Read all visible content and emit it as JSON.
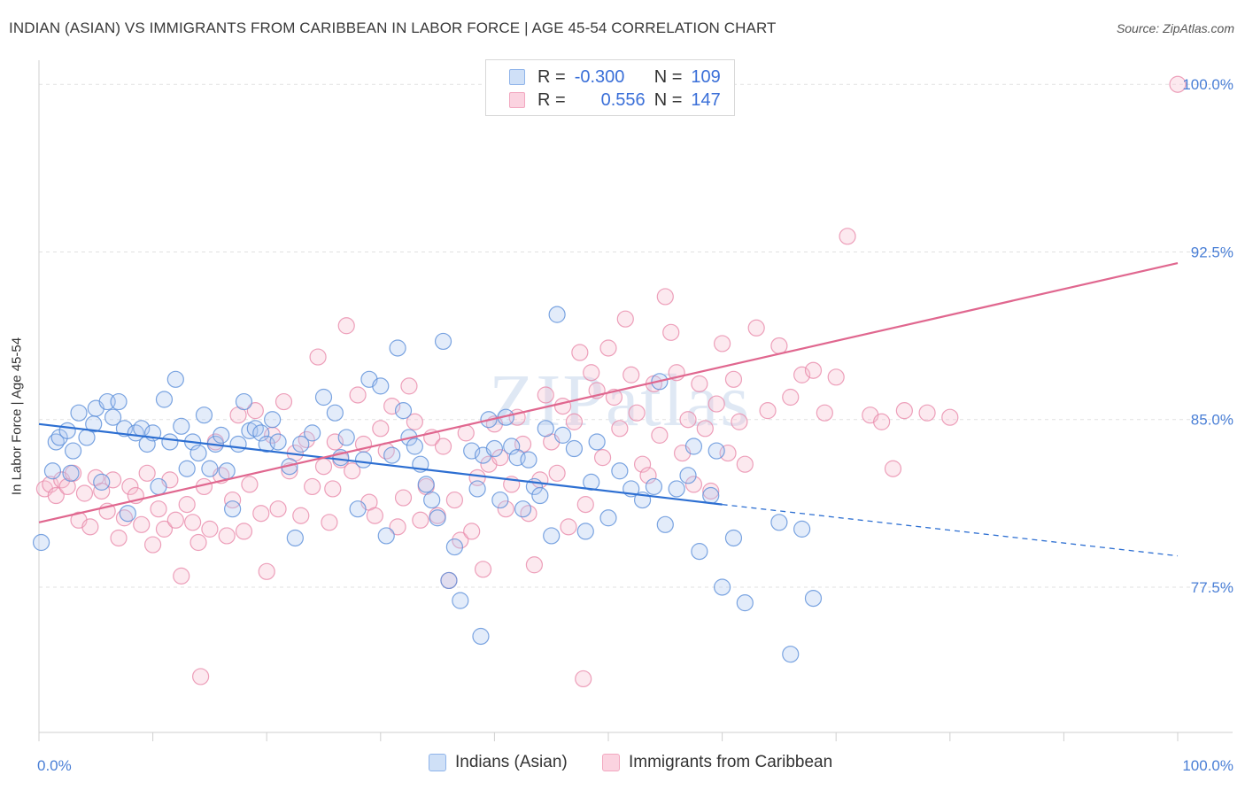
{
  "title": "INDIAN (ASIAN) VS IMMIGRANTS FROM CARIBBEAN IN LABOR FORCE | AGE 45-54 CORRELATION CHART",
  "source": "Source: ZipAtlas.com",
  "watermark": "ZIPatlas",
  "legend_top": {
    "rows": [
      {
        "r_label": "R =",
        "r_value": "-0.300",
        "n_label": "N =",
        "n_value": "109",
        "color": "#8fb4ea"
      },
      {
        "r_label": "R =",
        "r_value": "0.556",
        "n_label": "N =",
        "n_value": "147",
        "color": "#f2a8c0"
      }
    ]
  },
  "legend_bottom": [
    {
      "label": "Indians (Asian)",
      "color": "#aec8f0"
    },
    {
      "label": "Immigrants from Caribbean",
      "color": "#f6bfd0"
    }
  ],
  "colors": {
    "blue": "#4a86d8",
    "blue_line": "#2d6fd2",
    "pink": "#e87fa4",
    "pink_line": "#e0678f",
    "tick_text": "#4a7fd6"
  },
  "chart_data": {
    "type": "scatter",
    "title": "INDIAN (ASIAN) VS IMMIGRANTS FROM CARIBBEAN IN LABOR FORCE | AGE 45-54 CORRELATION CHART",
    "xlabel": "",
    "ylabel": "In Labor Force | Age 45-54",
    "xlim": [
      0,
      100
    ],
    "ylim": [
      71.0,
      101.0
    ],
    "x_tick_labels": [
      "0.0%",
      "100.0%"
    ],
    "y_ticks": [
      77.5,
      85.0,
      92.5,
      100.0
    ],
    "y_tick_labels": [
      "77.5%",
      "85.0%",
      "92.5%",
      "100.0%"
    ],
    "grid": true,
    "legend": "top-center",
    "series": [
      {
        "name": "Indians (Asian)",
        "trend": {
          "x0": 0,
          "y0": 84.8,
          "x1": 60,
          "y1": 81.2,
          "dash_to_x": 100,
          "dash_y": 78.9
        },
        "points": [
          [
            0.2,
            79.5
          ],
          [
            1.2,
            82.7
          ],
          [
            1.5,
            84.0
          ],
          [
            1.8,
            84.2
          ],
          [
            2.5,
            84.5
          ],
          [
            2.8,
            82.6
          ],
          [
            3.0,
            83.6
          ],
          [
            3.5,
            85.3
          ],
          [
            4.2,
            84.2
          ],
          [
            4.8,
            84.8
          ],
          [
            5.0,
            85.5
          ],
          [
            5.5,
            82.2
          ],
          [
            6.0,
            85.8
          ],
          [
            6.5,
            85.1
          ],
          [
            7.0,
            85.8
          ],
          [
            7.5,
            84.6
          ],
          [
            7.8,
            80.8
          ],
          [
            8.5,
            84.4
          ],
          [
            9.0,
            84.6
          ],
          [
            9.5,
            83.9
          ],
          [
            10.0,
            84.4
          ],
          [
            10.5,
            82.0
          ],
          [
            11.0,
            85.9
          ],
          [
            11.5,
            84.0
          ],
          [
            12.0,
            86.8
          ],
          [
            12.5,
            84.7
          ],
          [
            13.0,
            82.8
          ],
          [
            13.5,
            84.0
          ],
          [
            14.0,
            83.5
          ],
          [
            14.5,
            85.2
          ],
          [
            15.0,
            82.8
          ],
          [
            15.5,
            83.9
          ],
          [
            16.0,
            84.3
          ],
          [
            16.5,
            82.7
          ],
          [
            17.0,
            81.0
          ],
          [
            17.5,
            83.9
          ],
          [
            18.0,
            85.8
          ],
          [
            18.5,
            84.5
          ],
          [
            19.0,
            84.6
          ],
          [
            19.5,
            84.4
          ],
          [
            20.0,
            83.9
          ],
          [
            20.5,
            85.0
          ],
          [
            21.0,
            84.0
          ],
          [
            22.0,
            82.9
          ],
          [
            22.5,
            79.7
          ],
          [
            23.0,
            83.9
          ],
          [
            24.0,
            84.4
          ],
          [
            25.0,
            86.0
          ],
          [
            26.0,
            85.3
          ],
          [
            26.5,
            83.3
          ],
          [
            27.0,
            84.2
          ],
          [
            28.0,
            81.0
          ],
          [
            28.5,
            83.2
          ],
          [
            29.0,
            86.8
          ],
          [
            30.0,
            86.5
          ],
          [
            30.5,
            79.8
          ],
          [
            31.0,
            83.4
          ],
          [
            31.5,
            88.2
          ],
          [
            32.0,
            85.4
          ],
          [
            32.5,
            84.2
          ],
          [
            33.0,
            83.8
          ],
          [
            33.5,
            83.0
          ],
          [
            34.0,
            82.1
          ],
          [
            34.5,
            81.4
          ],
          [
            35.0,
            80.6
          ],
          [
            35.5,
            88.5
          ],
          [
            36.0,
            77.8
          ],
          [
            36.5,
            79.3
          ],
          [
            37.0,
            76.9
          ],
          [
            38.0,
            83.6
          ],
          [
            38.5,
            81.9
          ],
          [
            39.0,
            83.4
          ],
          [
            39.5,
            85.0
          ],
          [
            40.0,
            83.7
          ],
          [
            40.5,
            81.4
          ],
          [
            41.0,
            85.1
          ],
          [
            41.5,
            83.8
          ],
          [
            42.0,
            83.3
          ],
          [
            42.5,
            81.0
          ],
          [
            43.0,
            83.2
          ],
          [
            43.5,
            82.0
          ],
          [
            44.0,
            81.6
          ],
          [
            44.5,
            84.6
          ],
          [
            45.0,
            79.8
          ],
          [
            46.0,
            84.3
          ],
          [
            47.0,
            83.7
          ],
          [
            48.0,
            80.0
          ],
          [
            48.5,
            82.2
          ],
          [
            49.0,
            84.0
          ],
          [
            50.0,
            80.6
          ],
          [
            51.0,
            82.7
          ],
          [
            52.0,
            81.9
          ],
          [
            53.0,
            81.4
          ],
          [
            54.0,
            82.0
          ],
          [
            55.0,
            80.3
          ],
          [
            56.0,
            81.9
          ],
          [
            57.0,
            82.5
          ],
          [
            58.0,
            79.1
          ],
          [
            59.0,
            81.6
          ],
          [
            60.0,
            77.5
          ],
          [
            61.0,
            79.7
          ],
          [
            62.0,
            76.8
          ],
          [
            45.5,
            89.7
          ],
          [
            38.8,
            75.3
          ],
          [
            54.5,
            86.7
          ],
          [
            57.5,
            83.8
          ],
          [
            59.5,
            83.6
          ],
          [
            65.0,
            80.4
          ],
          [
            67.0,
            80.1
          ],
          [
            68.0,
            77.0
          ],
          [
            66.0,
            74.5
          ]
        ]
      },
      {
        "name": "Immigrants from Caribbean",
        "trend": {
          "x0": 0,
          "y0": 80.4,
          "x1": 100,
          "y1": 92.0
        },
        "points": [
          [
            0.5,
            81.9
          ],
          [
            1.0,
            82.1
          ],
          [
            1.5,
            81.6
          ],
          [
            2.0,
            82.3
          ],
          [
            2.5,
            82.0
          ],
          [
            3.0,
            82.6
          ],
          [
            3.5,
            80.5
          ],
          [
            4.0,
            81.7
          ],
          [
            4.5,
            80.2
          ],
          [
            5.0,
            82.4
          ],
          [
            5.5,
            81.8
          ],
          [
            6.0,
            80.9
          ],
          [
            6.5,
            82.3
          ],
          [
            7.0,
            79.7
          ],
          [
            7.5,
            80.6
          ],
          [
            8.0,
            82.0
          ],
          [
            8.5,
            81.6
          ],
          [
            9.0,
            80.3
          ],
          [
            9.5,
            82.6
          ],
          [
            10.0,
            79.4
          ],
          [
            10.5,
            81.0
          ],
          [
            11.0,
            80.1
          ],
          [
            11.5,
            82.3
          ],
          [
            12.0,
            80.5
          ],
          [
            12.5,
            78.0
          ],
          [
            13.0,
            81.2
          ],
          [
            13.5,
            80.4
          ],
          [
            14.0,
            79.5
          ],
          [
            14.5,
            82.0
          ],
          [
            15.0,
            80.1
          ],
          [
            15.5,
            84.0
          ],
          [
            16.0,
            82.5
          ],
          [
            16.5,
            79.8
          ],
          [
            17.0,
            81.4
          ],
          [
            17.5,
            85.2
          ],
          [
            18.0,
            80.0
          ],
          [
            18.5,
            82.1
          ],
          [
            19.0,
            85.4
          ],
          [
            19.5,
            80.8
          ],
          [
            20.0,
            78.2
          ],
          [
            20.5,
            84.3
          ],
          [
            21.0,
            81.0
          ],
          [
            21.5,
            85.8
          ],
          [
            22.0,
            82.7
          ],
          [
            22.5,
            83.5
          ],
          [
            23.0,
            80.7
          ],
          [
            23.5,
            84.1
          ],
          [
            24.0,
            82.0
          ],
          [
            24.5,
            87.8
          ],
          [
            25.0,
            82.9
          ],
          [
            25.5,
            80.4
          ],
          [
            26.0,
            84.0
          ],
          [
            26.5,
            83.2
          ],
          [
            27.0,
            89.2
          ],
          [
            27.5,
            82.7
          ],
          [
            28.0,
            86.1
          ],
          [
            28.5,
            83.9
          ],
          [
            29.0,
            81.3
          ],
          [
            29.5,
            80.7
          ],
          [
            30.0,
            84.6
          ],
          [
            30.5,
            83.6
          ],
          [
            31.0,
            85.6
          ],
          [
            31.5,
            80.2
          ],
          [
            32.0,
            81.5
          ],
          [
            32.5,
            86.5
          ],
          [
            33.0,
            84.9
          ],
          [
            33.5,
            80.5
          ],
          [
            34.0,
            82.0
          ],
          [
            34.5,
            84.2
          ],
          [
            35.0,
            80.7
          ],
          [
            35.5,
            83.8
          ],
          [
            36.0,
            77.8
          ],
          [
            36.5,
            81.4
          ],
          [
            37.0,
            79.6
          ],
          [
            37.5,
            84.4
          ],
          [
            38.0,
            80.0
          ],
          [
            38.5,
            82.4
          ],
          [
            39.0,
            78.3
          ],
          [
            39.5,
            83.0
          ],
          [
            40.0,
            84.8
          ],
          [
            40.5,
            83.3
          ],
          [
            41.0,
            81.0
          ],
          [
            41.5,
            82.1
          ],
          [
            42.0,
            85.1
          ],
          [
            42.5,
            83.9
          ],
          [
            43.0,
            80.8
          ],
          [
            43.5,
            78.5
          ],
          [
            44.0,
            82.3
          ],
          [
            44.5,
            86.1
          ],
          [
            45.0,
            84.0
          ],
          [
            45.5,
            82.6
          ],
          [
            46.0,
            85.6
          ],
          [
            46.5,
            80.2
          ],
          [
            47.0,
            84.9
          ],
          [
            47.5,
            88.0
          ],
          [
            48.0,
            81.2
          ],
          [
            48.5,
            87.1
          ],
          [
            49.0,
            86.3
          ],
          [
            49.5,
            83.3
          ],
          [
            50.0,
            88.2
          ],
          [
            50.5,
            86.0
          ],
          [
            51.0,
            84.6
          ],
          [
            51.5,
            89.5
          ],
          [
            52.0,
            87.0
          ],
          [
            52.5,
            85.3
          ],
          [
            53.0,
            83.0
          ],
          [
            53.5,
            82.5
          ],
          [
            54.0,
            86.6
          ],
          [
            54.5,
            84.3
          ],
          [
            55.0,
            90.5
          ],
          [
            55.5,
            88.9
          ],
          [
            56.0,
            87.1
          ],
          [
            56.5,
            83.5
          ],
          [
            57.0,
            85.0
          ],
          [
            57.5,
            82.1
          ],
          [
            58.0,
            86.6
          ],
          [
            58.5,
            84.6
          ],
          [
            59.0,
            81.8
          ],
          [
            59.5,
            85.7
          ],
          [
            60.0,
            88.4
          ],
          [
            60.5,
            83.5
          ],
          [
            61.0,
            86.8
          ],
          [
            61.5,
            84.9
          ],
          [
            62.0,
            83.0
          ],
          [
            63.0,
            89.1
          ],
          [
            64.0,
            85.4
          ],
          [
            65.0,
            88.3
          ],
          [
            66.0,
            86.0
          ],
          [
            67.0,
            87.0
          ],
          [
            68.0,
            87.2
          ],
          [
            69.0,
            85.3
          ],
          [
            70.0,
            86.9
          ],
          [
            71.0,
            93.2
          ],
          [
            73.0,
            85.2
          ],
          [
            74.0,
            84.9
          ],
          [
            75.0,
            82.8
          ],
          [
            76.0,
            85.4
          ],
          [
            78.0,
            85.3
          ],
          [
            80.0,
            85.1
          ],
          [
            100.0,
            100.0
          ],
          [
            14.2,
            73.5
          ],
          [
            47.8,
            73.4
          ],
          [
            25.8,
            81.9
          ]
        ]
      }
    ]
  }
}
